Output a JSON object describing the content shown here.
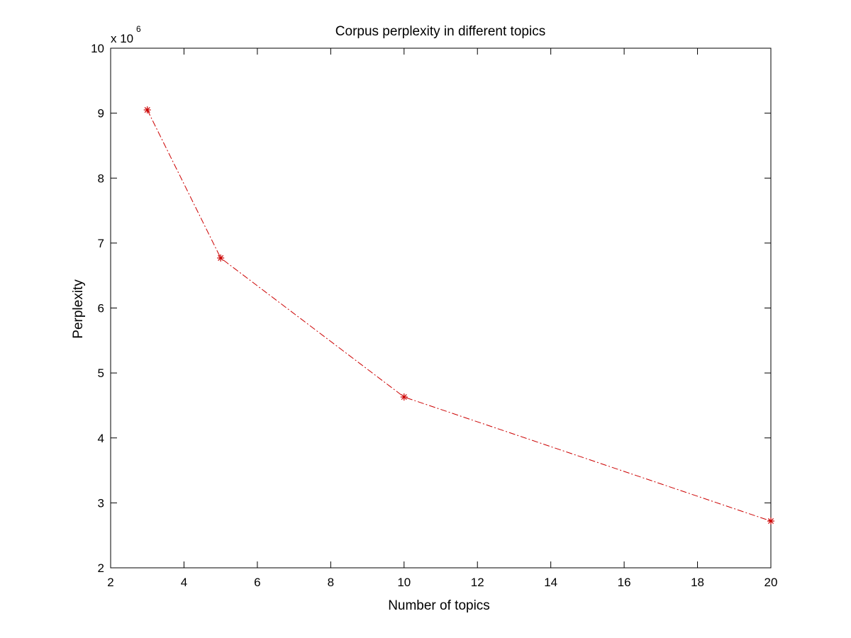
{
  "chart_data": {
    "type": "line",
    "title": "Corpus perplexity in different topics",
    "xlabel": "Number of topics",
    "ylabel": "Perplexity",
    "y_multiplier": {
      "base": "x 10",
      "exponent": "6"
    },
    "xlim": [
      2,
      20
    ],
    "ylim": [
      2,
      10
    ],
    "xticks": [
      2,
      4,
      6,
      8,
      10,
      12,
      14,
      16,
      18,
      20
    ],
    "yticks": [
      2,
      3,
      4,
      5,
      6,
      7,
      8,
      9,
      10
    ],
    "grid": false,
    "legend": "none",
    "series": [
      {
        "x": [
          3,
          5,
          10,
          20
        ],
        "y": [
          9.05,
          6.77,
          4.63,
          2.72
        ],
        "color": "#cc0000",
        "line_style": "dash-dot",
        "marker": "asterisk"
      }
    ]
  }
}
